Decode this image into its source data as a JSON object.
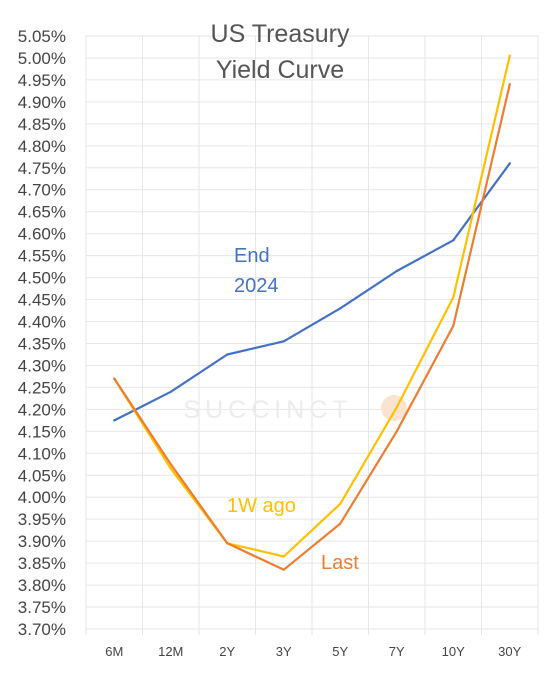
{
  "chart_data": {
    "type": "line",
    "title_lines": [
      "US Treasury",
      "Yield Curve"
    ],
    "watermark": "SUCCINCT",
    "categories": [
      "6M",
      "12M",
      "2Y",
      "3Y",
      "5Y",
      "7Y",
      "10Y",
      "30Y"
    ],
    "y_tick_labels": [
      "5.05%",
      "5.00%",
      "4.95%",
      "4.90%",
      "4.85%",
      "4.80%",
      "4.75%",
      "4.70%",
      "4.65%",
      "4.60%",
      "4.55%",
      "4.50%",
      "4.45%",
      "4.40%",
      "4.35%",
      "4.30%",
      "4.25%",
      "4.20%",
      "4.15%",
      "4.10%",
      "4.05%",
      "4.00%",
      "3.95%",
      "3.90%",
      "3.85%",
      "3.80%",
      "3.75%",
      "3.70%"
    ],
    "ylim": [
      3.7,
      5.05
    ],
    "grid": true,
    "series": [
      {
        "name": "End 2024",
        "label_lines": [
          "End",
          "2024"
        ],
        "color": "#4472c4",
        "values": [
          4.175,
          4.24,
          4.325,
          4.355,
          4.43,
          4.515,
          4.585,
          4.76
        ]
      },
      {
        "name": "1W ago",
        "label_lines": [
          "1W ago"
        ],
        "color": "#ffc000",
        "values": [
          4.27,
          4.065,
          3.895,
          3.865,
          3.985,
          4.205,
          4.455,
          5.005
        ]
      },
      {
        "name": "Last",
        "label_lines": [
          "Last"
        ],
        "color": "#ed7d31",
        "values": [
          4.27,
          4.075,
          3.895,
          3.835,
          3.94,
          4.15,
          4.39,
          4.94
        ]
      }
    ]
  }
}
